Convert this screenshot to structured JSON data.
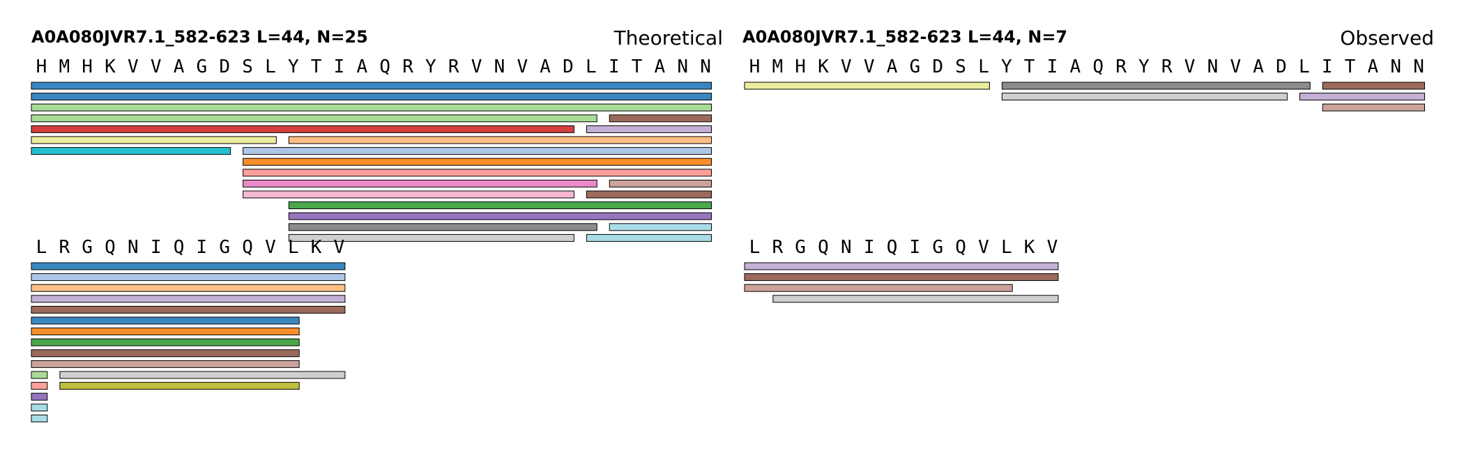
{
  "colors": {
    "blue": "#3a87c0",
    "lightblue": "#aec7e8",
    "lightgreen": "#a8dc98",
    "red": "#d53e3e",
    "lavender": "#c5b0d5",
    "brown": "#9c6a5c",
    "peach": "#ffbf86",
    "cyan": "#25bfcf",
    "orange": "#f98f2b",
    "pink": "#ff9f9c",
    "magenta": "#e98bc9",
    "rosy": "#cca29c",
    "lightpink": "#f5b8d2",
    "green": "#4aa74a",
    "purple": "#9675bf",
    "gray": "#8c8c8c",
    "lightgray": "#cfcfcf",
    "skyblue": "#a9dce6",
    "khaki": "#ecec9f",
    "olive": "#c0c040"
  },
  "panels": [
    {
      "id": "theoretical",
      "title": "A0A080JVR7.1_582-623  L=44, N=25",
      "label": "Theoretical",
      "rows": [
        {
          "residues": [
            "H",
            "M",
            "H",
            "K",
            "V",
            "V",
            "A",
            "G",
            "D",
            "S",
            "L",
            "Y",
            "T",
            "I",
            "A",
            "Q",
            "R",
            "Y",
            "R",
            "V",
            "N",
            "V",
            "A",
            "D",
            "L",
            "I",
            "T",
            "A",
            "N",
            "N"
          ],
          "bars": [
            {
              "start": 0,
              "end": 30,
              "lane": 0,
              "color": "blue"
            },
            {
              "start": 0,
              "end": 30,
              "lane": 1,
              "color": "blue"
            },
            {
              "start": 0,
              "end": 30,
              "lane": 2,
              "color": "lightgreen"
            },
            {
              "start": 0,
              "end": 25,
              "lane": 3,
              "color": "lightgreen"
            },
            {
              "start": 25,
              "end": 30,
              "lane": 3,
              "color": "brown"
            },
            {
              "start": 0,
              "end": 24,
              "lane": 4,
              "color": "red"
            },
            {
              "start": 24,
              "end": 30,
              "lane": 4,
              "color": "lavender"
            },
            {
              "start": 0,
              "end": 11,
              "lane": 5,
              "color": "khaki"
            },
            {
              "start": 11,
              "end": 30,
              "lane": 5,
              "color": "peach"
            },
            {
              "start": 0,
              "end": 9,
              "lane": 6,
              "color": "cyan"
            },
            {
              "start": 9,
              "end": 30,
              "lane": 6,
              "color": "lightblue"
            },
            {
              "start": 9,
              "end": 30,
              "lane": 7,
              "color": "orange"
            },
            {
              "start": 9,
              "end": 30,
              "lane": 8,
              "color": "pink"
            },
            {
              "start": 9,
              "end": 25,
              "lane": 9,
              "color": "magenta"
            },
            {
              "start": 25,
              "end": 30,
              "lane": 9,
              "color": "rosy"
            },
            {
              "start": 9,
              "end": 24,
              "lane": 10,
              "color": "lightpink"
            },
            {
              "start": 24,
              "end": 30,
              "lane": 10,
              "color": "brown"
            },
            {
              "start": 11,
              "end": 30,
              "lane": 11,
              "color": "green"
            },
            {
              "start": 11,
              "end": 30,
              "lane": 12,
              "color": "purple"
            },
            {
              "start": 11,
              "end": 25,
              "lane": 13,
              "color": "gray"
            },
            {
              "start": 25,
              "end": 30,
              "lane": 13,
              "color": "skyblue"
            },
            {
              "start": 11,
              "end": 24,
              "lane": 14,
              "color": "lightgray"
            },
            {
              "start": 24,
              "end": 30,
              "lane": 14,
              "color": "skyblue"
            }
          ]
        },
        {
          "residues": [
            "L",
            "R",
            "G",
            "Q",
            "N",
            "I",
            "Q",
            "I",
            "G",
            "Q",
            "V",
            "L",
            "K",
            "V"
          ],
          "bars": [
            {
              "start": 0,
              "end": 14,
              "lane": 0,
              "color": "blue"
            },
            {
              "start": 0,
              "end": 14,
              "lane": 1,
              "color": "lightblue"
            },
            {
              "start": 0,
              "end": 14,
              "lane": 2,
              "color": "peach"
            },
            {
              "start": 0,
              "end": 14,
              "lane": 3,
              "color": "lavender"
            },
            {
              "start": 0,
              "end": 14,
              "lane": 4,
              "color": "brown"
            },
            {
              "start": 0,
              "end": 12,
              "lane": 5,
              "color": "blue"
            },
            {
              "start": 0,
              "end": 12,
              "lane": 6,
              "color": "orange"
            },
            {
              "start": 0,
              "end": 12,
              "lane": 7,
              "color": "green"
            },
            {
              "start": 0,
              "end": 12,
              "lane": 8,
              "color": "brown"
            },
            {
              "start": 0,
              "end": 12,
              "lane": 9,
              "color": "rosy"
            },
            {
              "start": 0,
              "end": 1,
              "lane": 10,
              "color": "lightgreen"
            },
            {
              "start": 1,
              "end": 14,
              "lane": 10,
              "color": "lightgray"
            },
            {
              "start": 0,
              "end": 1,
              "lane": 11,
              "color": "pink"
            },
            {
              "start": 1,
              "end": 12,
              "lane": 11,
              "color": "olive"
            },
            {
              "start": 0,
              "end": 1,
              "lane": 12,
              "color": "purple"
            },
            {
              "start": 0,
              "end": 1,
              "lane": 13,
              "color": "skyblue"
            },
            {
              "start": 0,
              "end": 1,
              "lane": 14,
              "color": "skyblue"
            }
          ]
        }
      ]
    },
    {
      "id": "observed",
      "title": "A0A080JVR7.1_582-623  L=44, N=7",
      "label": "Observed",
      "rows": [
        {
          "residues": [
            "H",
            "M",
            "H",
            "K",
            "V",
            "V",
            "A",
            "G",
            "D",
            "S",
            "L",
            "Y",
            "T",
            "I",
            "A",
            "Q",
            "R",
            "Y",
            "R",
            "V",
            "N",
            "V",
            "A",
            "D",
            "L",
            "I",
            "T",
            "A",
            "N",
            "N"
          ],
          "bars": [
            {
              "start": 0,
              "end": 11,
              "lane": 0,
              "color": "khaki"
            },
            {
              "start": 11,
              "end": 25,
              "lane": 0,
              "color": "gray"
            },
            {
              "start": 25,
              "end": 30,
              "lane": 0,
              "color": "brown"
            },
            {
              "start": 11,
              "end": 24,
              "lane": 1,
              "color": "lightgray"
            },
            {
              "start": 24,
              "end": 30,
              "lane": 1,
              "color": "lavender"
            },
            {
              "start": 25,
              "end": 30,
              "lane": 2,
              "color": "rosy"
            }
          ]
        },
        {
          "residues": [
            "L",
            "R",
            "G",
            "Q",
            "N",
            "I",
            "Q",
            "I",
            "G",
            "Q",
            "V",
            "L",
            "K",
            "V"
          ],
          "bars": [
            {
              "start": 0,
              "end": 14,
              "lane": 0,
              "color": "lavender"
            },
            {
              "start": 0,
              "end": 14,
              "lane": 1,
              "color": "brown"
            },
            {
              "start": 0,
              "end": 12,
              "lane": 2,
              "color": "rosy"
            },
            {
              "start": 1,
              "end": 14,
              "lane": 3,
              "color": "lightgray"
            }
          ]
        }
      ]
    }
  ]
}
